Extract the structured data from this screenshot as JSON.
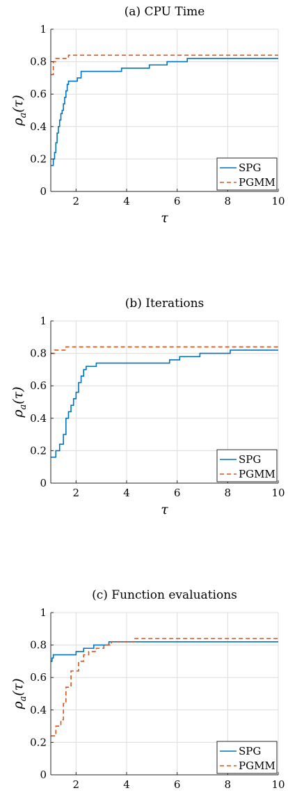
{
  "chart_data": [
    {
      "type": "line",
      "step": true,
      "title": "(a) CPU Time",
      "xlabel": "τ",
      "ylabel": "ρ_a(τ)",
      "xlim": [
        1,
        10
      ],
      "ylim": [
        0,
        1
      ],
      "xticks": [
        2,
        4,
        6,
        8,
        10
      ],
      "yticks": [
        0,
        0.2,
        0.4,
        0.6,
        0.8,
        1
      ],
      "grid": true,
      "legend": "bottom-right",
      "series": [
        {
          "name": "SPG",
          "color": "#0072bd",
          "dash": "solid",
          "x": [
            1.0,
            1.1,
            1.15,
            1.2,
            1.25,
            1.3,
            1.35,
            1.4,
            1.45,
            1.5,
            1.55,
            1.6,
            1.65,
            1.7,
            1.75,
            1.8,
            2.05,
            2.2,
            3.8,
            4.9,
            5.6,
            6.4,
            10.0
          ],
          "y": [
            0.16,
            0.2,
            0.24,
            0.3,
            0.36,
            0.4,
            0.44,
            0.48,
            0.5,
            0.54,
            0.58,
            0.62,
            0.66,
            0.68,
            0.68,
            0.68,
            0.7,
            0.74,
            0.76,
            0.78,
            0.8,
            0.82,
            0.82
          ]
        },
        {
          "name": "PGMM",
          "color": "#d95319",
          "dash": "dashed",
          "x": [
            1.0,
            1.1,
            1.2,
            1.7,
            10.0
          ],
          "y": [
            0.72,
            0.8,
            0.82,
            0.84,
            0.84
          ]
        }
      ]
    },
    {
      "type": "line",
      "step": true,
      "title": "(b) Iterations",
      "xlabel": "τ",
      "ylabel": "ρ_a(τ)",
      "xlim": [
        1,
        10
      ],
      "ylim": [
        0,
        1
      ],
      "xticks": [
        2,
        4,
        6,
        8,
        10
      ],
      "yticks": [
        0,
        0.2,
        0.4,
        0.6,
        0.8,
        1
      ],
      "grid": true,
      "legend": "bottom-right",
      "series": [
        {
          "name": "SPG",
          "color": "#0072bd",
          "dash": "solid",
          "x": [
            1.0,
            1.2,
            1.35,
            1.5,
            1.6,
            1.7,
            1.8,
            1.9,
            2.0,
            2.1,
            2.2,
            2.3,
            2.4,
            2.6,
            2.8,
            5.7,
            6.1,
            6.9,
            8.1,
            10.0
          ],
          "y": [
            0.16,
            0.2,
            0.24,
            0.3,
            0.4,
            0.44,
            0.48,
            0.52,
            0.56,
            0.62,
            0.66,
            0.7,
            0.72,
            0.72,
            0.74,
            0.76,
            0.78,
            0.8,
            0.82,
            0.82
          ]
        },
        {
          "name": "PGMM",
          "color": "#d95319",
          "dash": "dashed",
          "x": [
            1.0,
            1.15,
            1.35,
            1.6,
            10.0
          ],
          "y": [
            0.8,
            0.82,
            0.82,
            0.84,
            0.84
          ]
        }
      ]
    },
    {
      "type": "line",
      "step": true,
      "title": "(c) Function evaluations",
      "xlabel": "τ",
      "ylabel": "ρ_a(τ)",
      "xlim": [
        1,
        10
      ],
      "ylim": [
        0,
        1
      ],
      "xticks": [
        2,
        4,
        6,
        8,
        10
      ],
      "yticks": [
        0,
        0.2,
        0.4,
        0.6,
        0.8,
        1
      ],
      "grid": true,
      "legend": "bottom-right",
      "series": [
        {
          "name": "SPG",
          "color": "#0072bd",
          "dash": "solid",
          "x": [
            1.0,
            1.05,
            1.1,
            2.0,
            2.3,
            2.7,
            3.3,
            10.0
          ],
          "y": [
            0.7,
            0.72,
            0.74,
            0.76,
            0.78,
            0.8,
            0.82,
            0.82
          ]
        },
        {
          "name": "PGMM",
          "color": "#d95319",
          "dash": "dashed",
          "x": [
            1.0,
            1.2,
            1.4,
            1.5,
            1.6,
            1.8,
            2.1,
            2.3,
            2.5,
            2.8,
            3.1,
            3.4,
            4.3,
            10.0
          ],
          "y": [
            0.24,
            0.3,
            0.34,
            0.44,
            0.54,
            0.64,
            0.7,
            0.74,
            0.76,
            0.78,
            0.8,
            0.82,
            0.84,
            0.84
          ]
        }
      ]
    }
  ]
}
